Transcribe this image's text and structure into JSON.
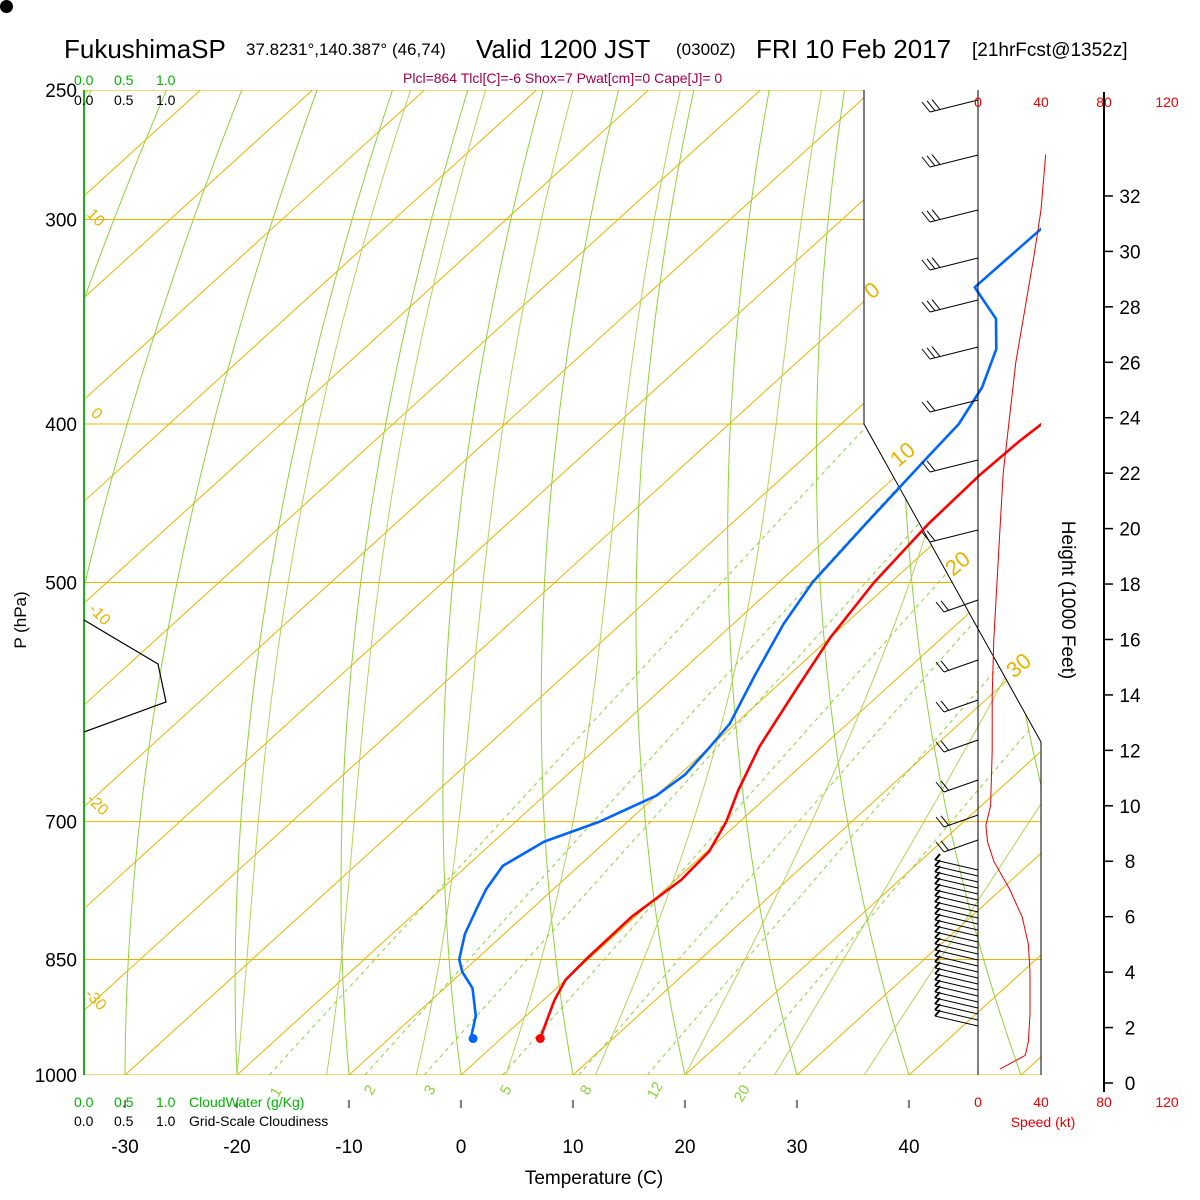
{
  "header": {
    "station": "FukushimaSP",
    "coords": "37.8231°,140.387° (46,74)",
    "valid": "Valid 1200 JST",
    "utc": "(0300Z)",
    "date": "FRI 10 Feb 2017",
    "forecast": "[21hrFcst@1352z]",
    "indices": "Plcl=864 Tlcl[C]=-6 Shox=7 Pwat[cm]=0 Cape[J]= 0"
  },
  "colors": {
    "temperature": "#ff0000",
    "dewpoint": "#0064ff",
    "isobars_isotherms": "#e6b400",
    "mixing_ratio": "#8cd23c",
    "cloudwater_scale": "#00b400",
    "speed_profile": "#e60000",
    "height_label": "#d4a400"
  },
  "chart_data": {
    "type": "skew-t",
    "xlabel": "Temperature (C)",
    "ylabel": "P (hPa)",
    "x_ticks": [
      -30,
      -20,
      -10,
      0,
      10,
      20,
      30,
      40
    ],
    "pressure_levels": [
      250,
      300,
      400,
      500,
      700,
      850,
      1000
    ],
    "isotherm_labels": [
      "10",
      "0",
      "-10",
      "-20",
      "-30"
    ],
    "dry_adiabat_labels": [
      "0",
      "10",
      "20",
      "30"
    ],
    "mixing_ratio_labels": [
      "1",
      "2",
      "3",
      "5",
      "8",
      "12",
      "20"
    ],
    "temperature_profile": [
      [
        950,
        3.5
      ],
      [
        930,
        2.5
      ],
      [
        900,
        1.0
      ],
      [
        875,
        0.0
      ],
      [
        850,
        -0.2
      ],
      [
        800,
        -0.3
      ],
      [
        760,
        0.5
      ],
      [
        730,
        0.2
      ],
      [
        700,
        -1.2
      ],
      [
        670,
        -3.2
      ],
      [
        630,
        -5.6
      ],
      [
        580,
        -8.0
      ],
      [
        540,
        -10.0
      ],
      [
        500,
        -11.5
      ],
      [
        460,
        -12.4
      ],
      [
        430,
        -12.6
      ],
      [
        410,
        -12.4
      ],
      [
        390,
        -11.8
      ],
      [
        370,
        -11.0
      ],
      [
        340,
        -9.2
      ],
      [
        320,
        -7.0
      ],
      [
        300,
        -4.8
      ],
      [
        275,
        -2.2
      ],
      [
        253,
        0.5
      ]
    ],
    "dewpoint_profile": [
      [
        950,
        -2.5
      ],
      [
        945,
        -3.0
      ],
      [
        920,
        -4.5
      ],
      [
        885,
        -7.5
      ],
      [
        865,
        -10.0
      ],
      [
        850,
        -11.5
      ],
      [
        820,
        -13.5
      ],
      [
        790,
        -15.0
      ],
      [
        770,
        -16.0
      ],
      [
        745,
        -16.8
      ],
      [
        720,
        -15.5
      ],
      [
        700,
        -12.5
      ],
      [
        675,
        -10.0
      ],
      [
        655,
        -9.5
      ],
      [
        630,
        -10.0
      ],
      [
        610,
        -10.5
      ],
      [
        570,
        -13.0
      ],
      [
        530,
        -15.5
      ],
      [
        500,
        -17.0
      ],
      [
        460,
        -18.0
      ],
      [
        420,
        -19.0
      ],
      [
        400,
        -19.5
      ],
      [
        380,
        -21.0
      ],
      [
        360,
        -23.5
      ],
      [
        345,
        -26.5
      ],
      [
        330,
        -31.5
      ],
      [
        265,
        -31.0
      ],
      [
        256,
        -30.5
      ]
    ],
    "cloudwater_scale_labels": [
      "0.0",
      "0.5",
      "1.0"
    ],
    "cloudiness_scale_labels": [
      "0.0",
      "0.5",
      "1.0"
    ],
    "cloudwater_label": "CloudWater (g/Kg)",
    "cloudiness_label": "Grid-Scale Cloudiness",
    "speed_ticks": [
      "0",
      "40",
      "80",
      "120"
    ],
    "speed_label": "Speed (kt)",
    "height_label": "Height (1000 Feet)",
    "height_ticks": [
      "0",
      "2",
      "4",
      "6",
      "8",
      "10",
      "12",
      "14",
      "16",
      "18",
      "20",
      "22",
      "24",
      "26",
      "28",
      "30",
      "32"
    ],
    "wind_speed_profile_kt": [
      [
        0.5,
        14
      ],
      [
        1.0,
        30
      ],
      [
        1.5,
        32
      ],
      [
        2.5,
        33
      ],
      [
        4.0,
        33
      ],
      [
        5.0,
        32
      ],
      [
        6.0,
        28
      ],
      [
        7.0,
        20
      ],
      [
        8.0,
        10
      ],
      [
        8.7,
        6
      ],
      [
        9.3,
        5
      ],
      [
        10.0,
        8
      ],
      [
        12.0,
        9
      ],
      [
        14.0,
        9
      ],
      [
        16.0,
        10
      ],
      [
        18.0,
        12
      ],
      [
        20.0,
        14
      ],
      [
        22.0,
        16
      ],
      [
        24.0,
        20
      ],
      [
        26.0,
        24
      ],
      [
        28.0,
        30
      ],
      [
        30.0,
        36
      ],
      [
        31.5,
        40
      ],
      [
        33.5,
        43
      ]
    ]
  }
}
